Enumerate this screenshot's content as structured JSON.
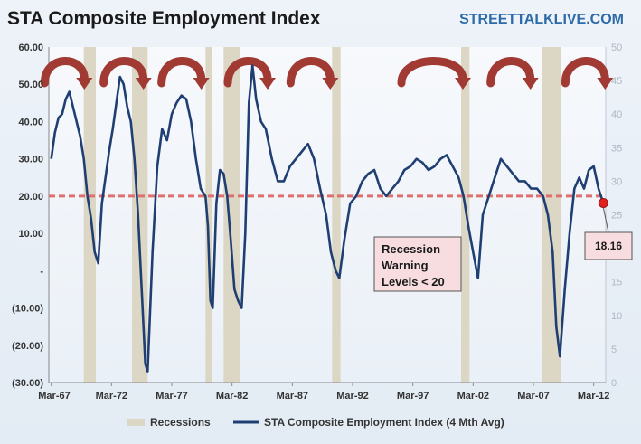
{
  "chart_data": {
    "type": "line",
    "title": "STA Composite Employment Index",
    "brand": "STREETTALKLIVE.COM",
    "y_ticks": [
      "60.00",
      "50.00",
      "40.00",
      "30.00",
      "20.00",
      "10.00",
      "-",
      "(10.00)",
      "(20.00)",
      "(30.00)"
    ],
    "ylim": [
      -30,
      60
    ],
    "y2_ticks": [
      "50",
      "45",
      "40",
      "35",
      "30",
      "25",
      "20",
      "15",
      "10",
      "5",
      "0"
    ],
    "y2lim": [
      0,
      50
    ],
    "x_ticks": [
      "Mar-67",
      "Mar-72",
      "Mar-77",
      "Mar-82",
      "Mar-87",
      "Mar-92",
      "Mar-97",
      "Mar-02",
      "Mar-07",
      "Mar-12"
    ],
    "xlim": [
      1967.0,
      2013.2
    ],
    "threshold": 20,
    "recessions": [
      [
        1969.9,
        1970.9
      ],
      [
        1973.9,
        1975.2
      ],
      [
        1980.0,
        1980.5
      ],
      [
        1981.5,
        1982.9
      ],
      [
        1990.5,
        1991.2
      ],
      [
        2001.2,
        2001.9
      ],
      [
        2007.9,
        2009.5
      ]
    ],
    "series": [
      {
        "name": "STA Composite Employment Index (4 Mth Avg)",
        "color": "#1f3f73",
        "x": [
          1967.2,
          1967.5,
          1967.8,
          1968.1,
          1968.4,
          1968.7,
          1969.0,
          1969.3,
          1969.6,
          1969.9,
          1970.2,
          1970.5,
          1970.8,
          1971.1,
          1971.4,
          1971.7,
          1972.0,
          1972.3,
          1972.6,
          1972.9,
          1973.2,
          1973.5,
          1973.8,
          1974.1,
          1974.4,
          1974.7,
          1975.0,
          1975.2,
          1975.6,
          1976.0,
          1976.4,
          1976.8,
          1977.2,
          1977.6,
          1978.0,
          1978.4,
          1978.8,
          1979.2,
          1979.6,
          1980.0,
          1980.2,
          1980.4,
          1980.6,
          1980.9,
          1981.2,
          1981.5,
          1981.8,
          1982.1,
          1982.4,
          1982.7,
          1983.0,
          1983.3,
          1983.6,
          1983.9,
          1984.2,
          1984.6,
          1985.0,
          1985.5,
          1986.0,
          1986.5,
          1987.0,
          1987.5,
          1988.0,
          1988.5,
          1989.0,
          1989.5,
          1990.0,
          1990.4,
          1990.8,
          1991.1,
          1991.5,
          1992.0,
          1992.5,
          1993.0,
          1993.5,
          1994.0,
          1994.5,
          1995.0,
          1995.5,
          1996.0,
          1996.5,
          1997.0,
          1997.5,
          1998.0,
          1998.5,
          1999.0,
          1999.5,
          2000.0,
          2000.5,
          2001.0,
          2001.4,
          2001.8,
          2002.2,
          2002.6,
          2003.0,
          2003.5,
          2004.0,
          2004.5,
          2005.0,
          2005.5,
          2006.0,
          2006.5,
          2007.0,
          2007.5,
          2008.0,
          2008.4,
          2008.8,
          2009.1,
          2009.4,
          2009.8,
          2010.2,
          2010.6,
          2011.0,
          2011.4,
          2011.8,
          2012.2,
          2012.6,
          2013.0
        ],
        "values": [
          30,
          37,
          41,
          42,
          46,
          48,
          44,
          40,
          36,
          30,
          20,
          14,
          5,
          2,
          18,
          25,
          32,
          38,
          45,
          52,
          50,
          44,
          40,
          30,
          15,
          -5,
          -25,
          -27,
          5,
          28,
          38,
          35,
          42,
          45,
          47,
          46,
          40,
          30,
          22,
          20,
          12,
          -8,
          -10,
          18,
          27,
          26,
          20,
          8,
          -5,
          -8,
          -10,
          10,
          45,
          55,
          46,
          40,
          38,
          30,
          24,
          24,
          28,
          30,
          32,
          34,
          30,
          22,
          15,
          5,
          0,
          -2,
          8,
          18,
          20,
          24,
          26,
          27,
          22,
          20,
          22,
          24,
          27,
          28,
          30,
          29,
          27,
          28,
          30,
          31,
          28,
          25,
          20,
          12,
          5,
          -2,
          15,
          20,
          25,
          30,
          28,
          26,
          24,
          24,
          22,
          22,
          20,
          15,
          5,
          -15,
          -23,
          -5,
          10,
          22,
          25,
          22,
          27,
          28,
          22,
          18.16
        ]
      }
    ],
    "legend": {
      "recessions_label": "Recessions",
      "series_label": "STA Composite Employment Index (4 Mth Avg)",
      "placement": "bottom"
    },
    "annotations": {
      "warning_lines": [
        "Recession",
        "Warning",
        "Levels < 20"
      ],
      "last_value_label": "18.16",
      "last_value": 18.16,
      "last_value_x": 2013.0
    },
    "peaks": [
      1968.3,
      1973.2,
      1978.0,
      1983.5,
      1988.7,
      1998.8,
      2005.3,
      2011.5
    ],
    "colors": {
      "line": "#1f3f73",
      "recession": "#dcd7c5",
      "threshold": "#e07070",
      "arrow": "#a23a34",
      "warning_box": "#f7dde0",
      "brand": "#2d6aa8"
    }
  }
}
